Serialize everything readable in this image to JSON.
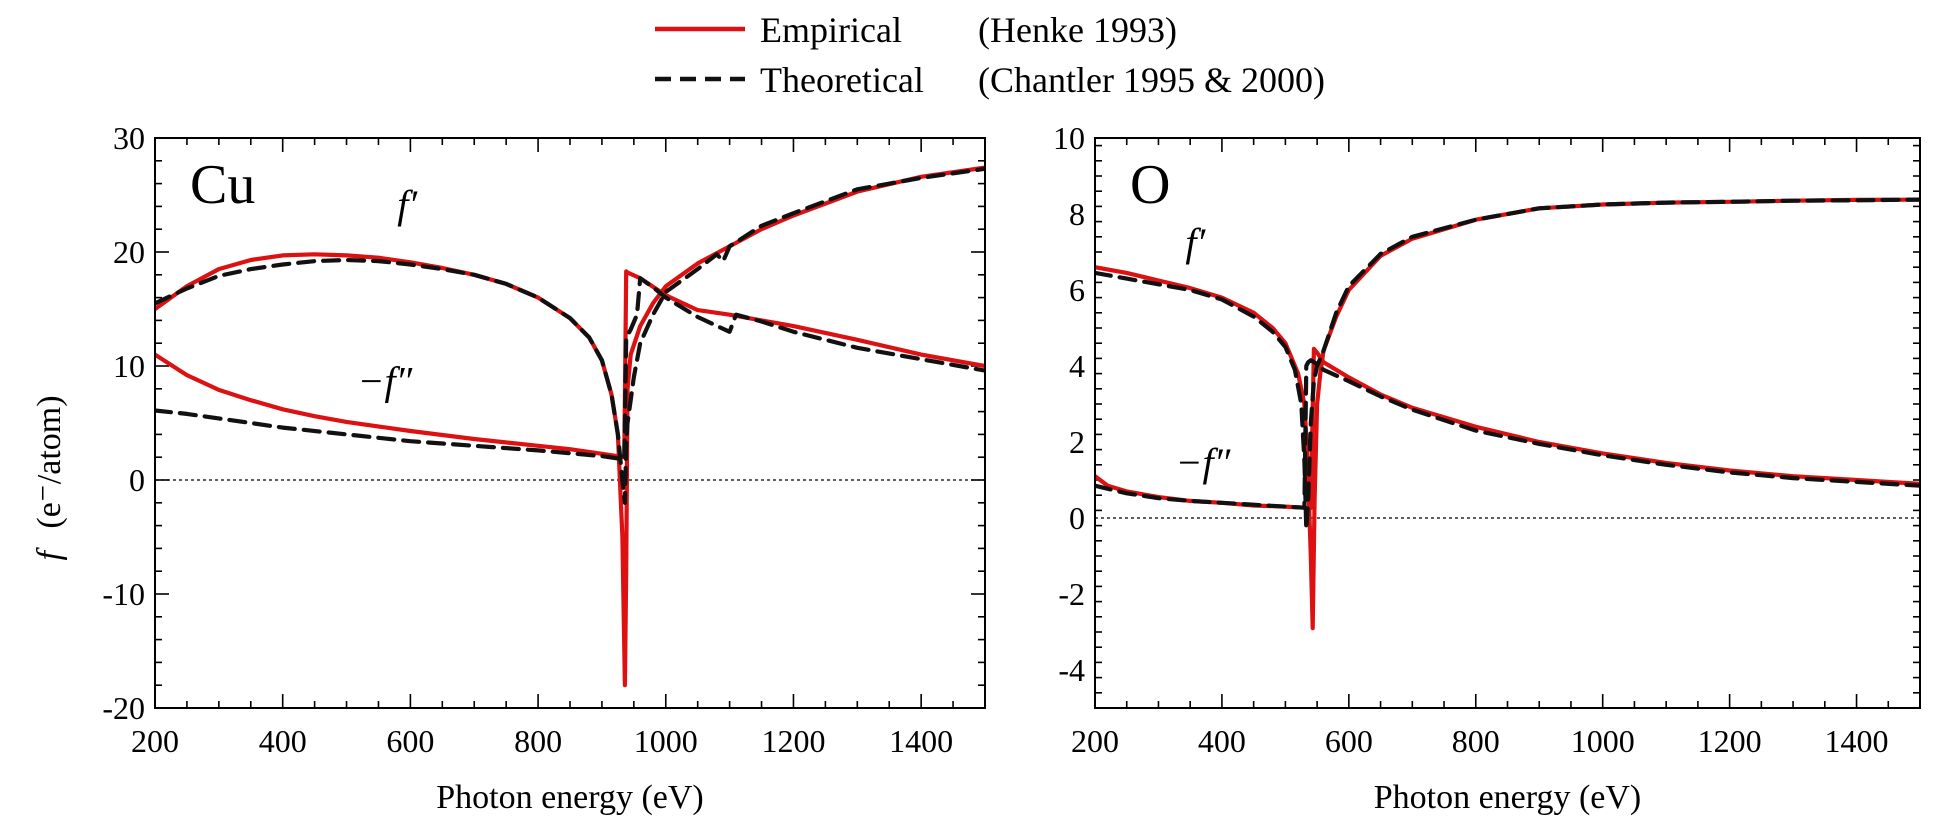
{
  "legend": {
    "entries": [
      {
        "label": "Empirical",
        "source": "(Henke 1993)",
        "color": "#dd1111",
        "dash": "solid"
      },
      {
        "label": "Theoretical",
        "source": "(Chantler 1995 & 2000)",
        "color": "#111111",
        "dash": "dashed"
      }
    ]
  },
  "ylabel_prefix": "f",
  "ylabel_units": "(e⁻/atom)",
  "chart_data": [
    {
      "type": "line",
      "panel_label": "Cu",
      "xlabel": "Photon energy (eV)",
      "xlim": [
        200,
        1500
      ],
      "ylim": [
        -20,
        30
      ],
      "xticks": [
        200,
        400,
        600,
        800,
        1000,
        1200,
        1400
      ],
      "yticks": [
        -20,
        -10,
        0,
        10,
        20,
        30
      ],
      "curve_labels": {
        "f1": "f′",
        "f2": "−f″"
      },
      "curve_label_anchor": {
        "f1": [
          595,
          23
        ],
        "f2": [
          560,
          7.5
        ]
      },
      "series": [
        {
          "name": "Empirical",
          "curve": "f1",
          "x": [
            200,
            250,
            300,
            350,
            400,
            450,
            500,
            550,
            600,
            650,
            700,
            750,
            800,
            850,
            880,
            900,
            915,
            925,
            932,
            936,
            938,
            940,
            945,
            960,
            980,
            1000,
            1050,
            1100,
            1150,
            1200,
            1300,
            1400,
            1500
          ],
          "y": [
            15,
            17,
            18.5,
            19.3,
            19.7,
            19.8,
            19.7,
            19.5,
            19.1,
            18.6,
            18.0,
            17.2,
            16.0,
            14.2,
            12.5,
            10.5,
            7.5,
            4,
            -5,
            -18,
            -8,
            8,
            11,
            13.5,
            15.5,
            17,
            19,
            20.5,
            22,
            23.2,
            25.3,
            26.6,
            27.4
          ]
        },
        {
          "name": "Empirical",
          "curve": "f2",
          "x": [
            200,
            250,
            300,
            350,
            400,
            450,
            500,
            600,
            700,
            800,
            850,
            900,
            935,
            938,
            940,
            960,
            1000,
            1050,
            1100,
            1150,
            1200,
            1300,
            1400,
            1500
          ],
          "y": [
            11,
            9.2,
            7.9,
            7.0,
            6.2,
            5.6,
            5.1,
            4.3,
            3.6,
            3.0,
            2.7,
            2.3,
            2.0,
            18.3,
            18.2,
            17.7,
            16.2,
            14.9,
            14.5,
            14.0,
            13.5,
            12.3,
            11.0,
            10.0
          ]
        },
        {
          "name": "Theoretical",
          "curve": "f1",
          "x": [
            200,
            250,
            300,
            350,
            400,
            450,
            500,
            550,
            600,
            650,
            700,
            750,
            800,
            850,
            880,
            900,
            915,
            925,
            932,
            936,
            938,
            940,
            945,
            950,
            960,
            980,
            1000,
            1050,
            1080,
            1090,
            1100,
            1150,
            1200,
            1300,
            1400,
            1500
          ],
          "y": [
            15.5,
            16.8,
            17.9,
            18.5,
            18.9,
            19.2,
            19.3,
            19.2,
            18.9,
            18.5,
            18.0,
            17.2,
            16.0,
            14.2,
            12.5,
            10.5,
            7.5,
            4,
            0,
            -2,
            3,
            5,
            7,
            9,
            12,
            14.5,
            16.5,
            18.5,
            19.8,
            19.2,
            20.5,
            22.3,
            23.4,
            25.5,
            26.5,
            27.3
          ]
        },
        {
          "name": "Theoretical",
          "curve": "f2",
          "x": [
            200,
            250,
            300,
            400,
            500,
            600,
            700,
            800,
            900,
            935,
            938,
            945,
            955,
            960,
            980,
            1000,
            1050,
            1100,
            1110,
            1150,
            1200,
            1300,
            1400,
            1500
          ],
          "y": [
            6.1,
            5.8,
            5.4,
            4.6,
            4.0,
            3.4,
            3.0,
            2.6,
            2.1,
            1.8,
            12.5,
            13.2,
            14.5,
            17.7,
            16.9,
            16,
            14.3,
            13.0,
            14.5,
            13.9,
            13.0,
            11.6,
            10.6,
            9.6
          ]
        }
      ]
    },
    {
      "type": "line",
      "panel_label": "O",
      "xlabel": "Photon energy (eV)",
      "xlim": [
        200,
        1500
      ],
      "ylim": [
        -5,
        10
      ],
      "xticks": [
        200,
        400,
        600,
        800,
        1000,
        1200,
        1400
      ],
      "yticks": [
        -4,
        -2,
        0,
        2,
        4,
        6,
        8,
        10
      ],
      "curve_labels": {
        "f1": "f′",
        "f2": "−f″"
      },
      "curve_label_anchor": {
        "f1": [
          358,
          6.9
        ],
        "f2": [
          370,
          1.1
        ]
      },
      "series": [
        {
          "name": "Empirical",
          "curve": "f1",
          "x": [
            200,
            250,
            300,
            350,
            400,
            450,
            480,
            500,
            520,
            530,
            535,
            540,
            543,
            546,
            550,
            555,
            560,
            580,
            600,
            650,
            700,
            800,
            900,
            1000,
            1100,
            1200,
            1300,
            1400,
            1500
          ],
          "y": [
            6.6,
            6.45,
            6.25,
            6.05,
            5.8,
            5.4,
            5.0,
            4.6,
            3.8,
            3.0,
            1.5,
            -1.0,
            -2.9,
            0.5,
            3.0,
            3.8,
            4.4,
            5.3,
            6.0,
            6.9,
            7.35,
            7.85,
            8.15,
            8.25,
            8.3,
            8.32,
            8.35,
            8.37,
            8.38
          ]
        },
        {
          "name": "Empirical",
          "curve": "f2",
          "x": [
            200,
            220,
            250,
            300,
            350,
            400,
            450,
            500,
            530,
            540,
            545,
            550,
            560,
            600,
            650,
            700,
            800,
            900,
            1000,
            1100,
            1200,
            1300,
            1400,
            1500
          ],
          "y": [
            1.1,
            0.85,
            0.7,
            0.55,
            0.45,
            0.4,
            0.33,
            0.3,
            0.27,
            0.26,
            4.45,
            4.35,
            4.1,
            3.7,
            3.25,
            2.9,
            2.4,
            2.0,
            1.7,
            1.45,
            1.25,
            1.1,
            1.0,
            0.9
          ]
        },
        {
          "name": "Theoretical",
          "curve": "f1",
          "x": [
            200,
            250,
            300,
            350,
            400,
            450,
            480,
            500,
            515,
            525,
            530,
            533,
            536,
            540,
            545,
            550,
            560,
            580,
            600,
            650,
            700,
            800,
            900,
            1000,
            1100,
            1200,
            1300,
            1400,
            1500
          ],
          "y": [
            6.45,
            6.3,
            6.15,
            6.0,
            5.75,
            5.3,
            4.9,
            4.5,
            3.9,
            3.0,
            1.5,
            -0.3,
            0.5,
            2.5,
            3.6,
            4.0,
            4.4,
            5.4,
            6.1,
            6.95,
            7.4,
            7.85,
            8.15,
            8.25,
            8.3,
            8.32,
            8.35,
            8.36,
            8.38
          ]
        },
        {
          "name": "Theoretical",
          "curve": "f2",
          "x": [
            200,
            250,
            300,
            350,
            400,
            450,
            500,
            530,
            533,
            536,
            540,
            550,
            560,
            600,
            650,
            700,
            800,
            900,
            1000,
            1100,
            1200,
            1300,
            1400,
            1500
          ],
          "y": [
            0.85,
            0.65,
            0.52,
            0.45,
            0.4,
            0.35,
            0.3,
            0.27,
            4.0,
            4.1,
            4.15,
            4.05,
            3.9,
            3.6,
            3.2,
            2.85,
            2.3,
            1.95,
            1.65,
            1.4,
            1.2,
            1.05,
            0.95,
            0.85
          ]
        }
      ]
    }
  ]
}
